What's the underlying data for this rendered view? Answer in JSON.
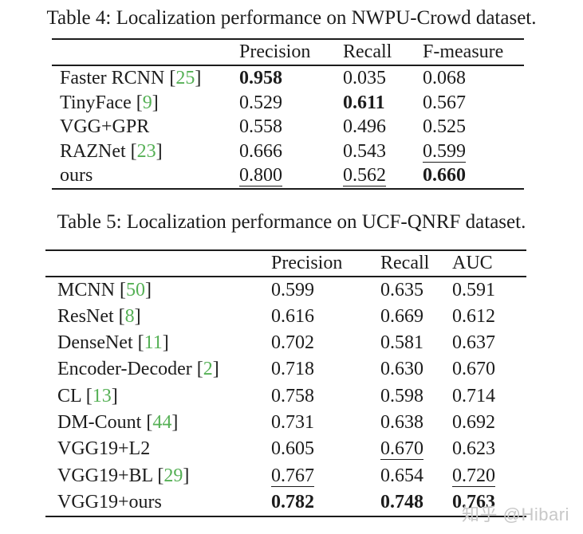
{
  "colors": {
    "text": "#1c1c1c",
    "rule": "#1c1c1c",
    "citation": "#55b055",
    "background": "#ffffff",
    "watermark": "#c8c8c8"
  },
  "tables": [
    {
      "caption": "Table 4: Localization performance on NWPU-Crowd dataset.",
      "columns": [
        "Precision",
        "Recall",
        "F-measure"
      ],
      "rows": [
        {
          "label": "Faster RCNN",
          "cite": "25",
          "values": [
            {
              "t": "0.958",
              "s": "b"
            },
            {
              "t": "0.035",
              "s": ""
            },
            {
              "t": "0.068",
              "s": ""
            }
          ]
        },
        {
          "label": "TinyFace",
          "cite": "9",
          "values": [
            {
              "t": "0.529",
              "s": ""
            },
            {
              "t": "0.611",
              "s": "b"
            },
            {
              "t": "0.567",
              "s": ""
            }
          ]
        },
        {
          "label": "VGG+GPR",
          "cite": null,
          "values": [
            {
              "t": "0.558",
              "s": ""
            },
            {
              "t": "0.496",
              "s": ""
            },
            {
              "t": "0.525",
              "s": ""
            }
          ]
        },
        {
          "label": "RAZNet",
          "cite": "23",
          "values": [
            {
              "t": "0.666",
              "s": ""
            },
            {
              "t": "0.543",
              "s": ""
            },
            {
              "t": "0.599",
              "s": "u"
            }
          ]
        },
        {
          "label": "ours",
          "cite": null,
          "values": [
            {
              "t": "0.800",
              "s": "u"
            },
            {
              "t": "0.562",
              "s": "u"
            },
            {
              "t": "0.660",
              "s": "b"
            }
          ]
        }
      ]
    },
    {
      "caption": "Table 5: Localization performance on UCF-QNRF dataset.",
      "columns": [
        "Precision",
        "Recall",
        "AUC"
      ],
      "rows": [
        {
          "label": "MCNN",
          "cite": "50",
          "values": [
            {
              "t": "0.599",
              "s": ""
            },
            {
              "t": "0.635",
              "s": ""
            },
            {
              "t": "0.591",
              "s": ""
            }
          ]
        },
        {
          "label": "ResNet",
          "cite": "8",
          "values": [
            {
              "t": "0.616",
              "s": ""
            },
            {
              "t": "0.669",
              "s": ""
            },
            {
              "t": "0.612",
              "s": ""
            }
          ]
        },
        {
          "label": "DenseNet",
          "cite": "11",
          "values": [
            {
              "t": "0.702",
              "s": ""
            },
            {
              "t": "0.581",
              "s": ""
            },
            {
              "t": "0.637",
              "s": ""
            }
          ]
        },
        {
          "label": "Encoder-Decoder",
          "cite": "2",
          "values": [
            {
              "t": "0.718",
              "s": ""
            },
            {
              "t": "0.630",
              "s": ""
            },
            {
              "t": "0.670",
              "s": ""
            }
          ]
        },
        {
          "label": "CL",
          "cite": "13",
          "values": [
            {
              "t": "0.758",
              "s": ""
            },
            {
              "t": "0.598",
              "s": ""
            },
            {
              "t": "0.714",
              "s": ""
            }
          ]
        },
        {
          "label": "DM-Count",
          "cite": "44",
          "values": [
            {
              "t": "0.731",
              "s": ""
            },
            {
              "t": "0.638",
              "s": ""
            },
            {
              "t": "0.692",
              "s": ""
            }
          ]
        },
        {
          "label": "VGG19+L2",
          "cite": null,
          "values": [
            {
              "t": "0.605",
              "s": ""
            },
            {
              "t": "0.670",
              "s": "u"
            },
            {
              "t": "0.623",
              "s": ""
            }
          ]
        },
        {
          "label": "VGG19+BL",
          "cite": "29",
          "values": [
            {
              "t": "0.767",
              "s": "u"
            },
            {
              "t": "0.654",
              "s": ""
            },
            {
              "t": "0.720",
              "s": "u"
            }
          ]
        },
        {
          "label": "VGG19+ours",
          "cite": null,
          "values": [
            {
              "t": "0.782",
              "s": "b"
            },
            {
              "t": "0.748",
              "s": "b"
            },
            {
              "t": "0.763",
              "s": "b"
            }
          ]
        }
      ]
    }
  ],
  "watermark": {
    "text": "知乎 @Hibari"
  }
}
